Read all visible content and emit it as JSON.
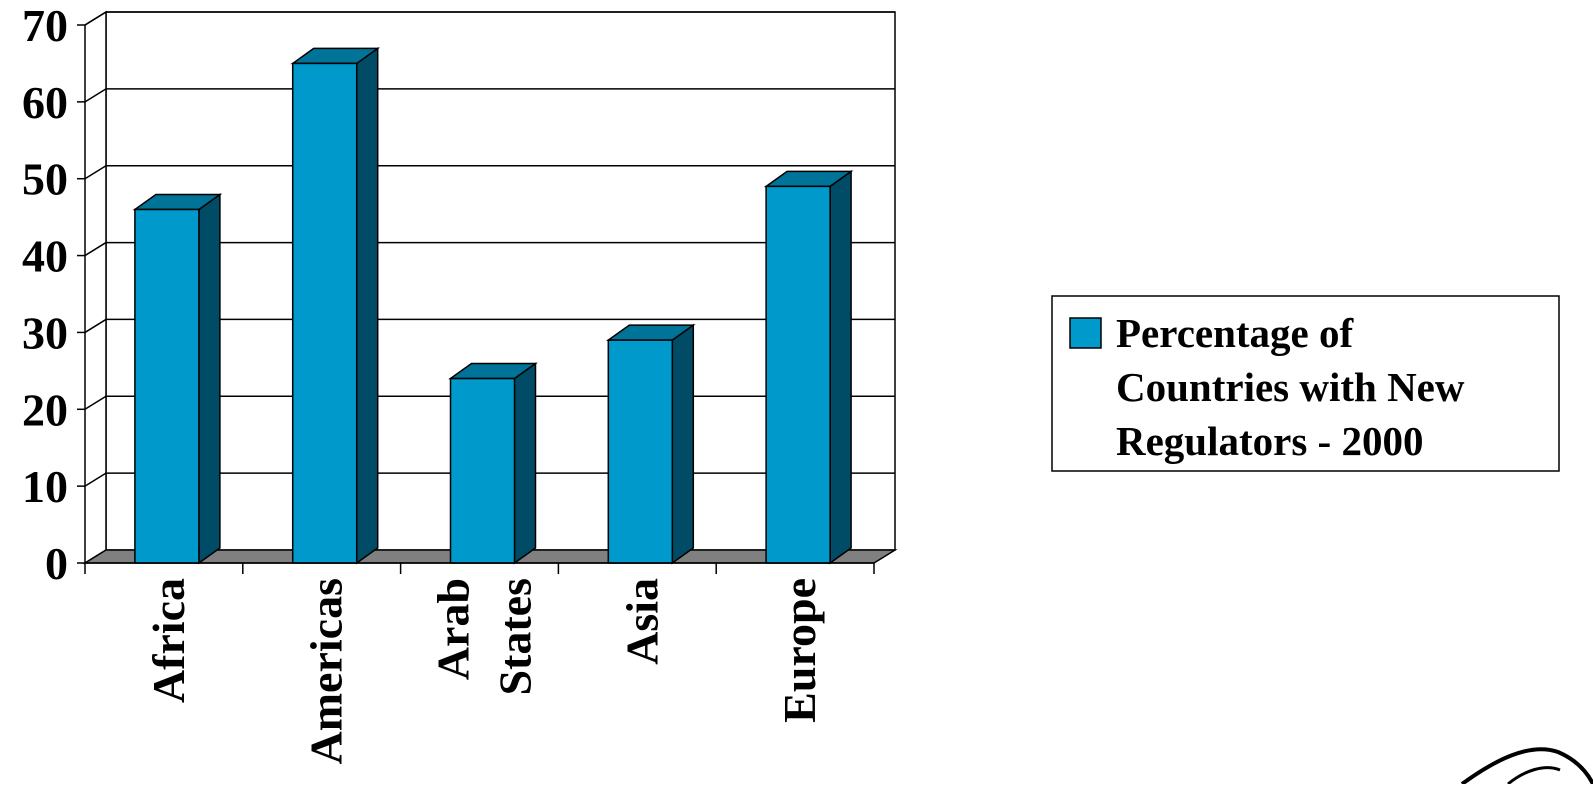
{
  "chart_data": {
    "type": "bar",
    "style": "3d-column",
    "categories": [
      "Africa",
      "Americas",
      "Arab States",
      "Asia",
      "Europe"
    ],
    "category_label_lines": [
      [
        "Africa"
      ],
      [
        "Americas"
      ],
      [
        "Arab",
        "States"
      ],
      [
        "Asia"
      ],
      [
        "Europe"
      ]
    ],
    "series": [
      {
        "name": "Percentage of Countries with New Regulators - 2000",
        "values": [
          46,
          65,
          24,
          29,
          49
        ]
      }
    ],
    "legend_lines": [
      "Percentage of",
      "Countries with New",
      "Regulators - 2000"
    ],
    "ylim": [
      0,
      70
    ],
    "y_ticks": [
      0,
      10,
      20,
      30,
      40,
      50,
      60,
      70
    ],
    "y_tick_labels": [
      "0",
      "10",
      "20",
      "30",
      "40",
      "50",
      "60",
      "70"
    ],
    "grid": true,
    "legend_position": "right",
    "colors": {
      "bar_front": "#0099CC",
      "bar_top": "#007399",
      "bar_side": "#004C66",
      "floor": "#808080",
      "grid": "#000000"
    }
  }
}
